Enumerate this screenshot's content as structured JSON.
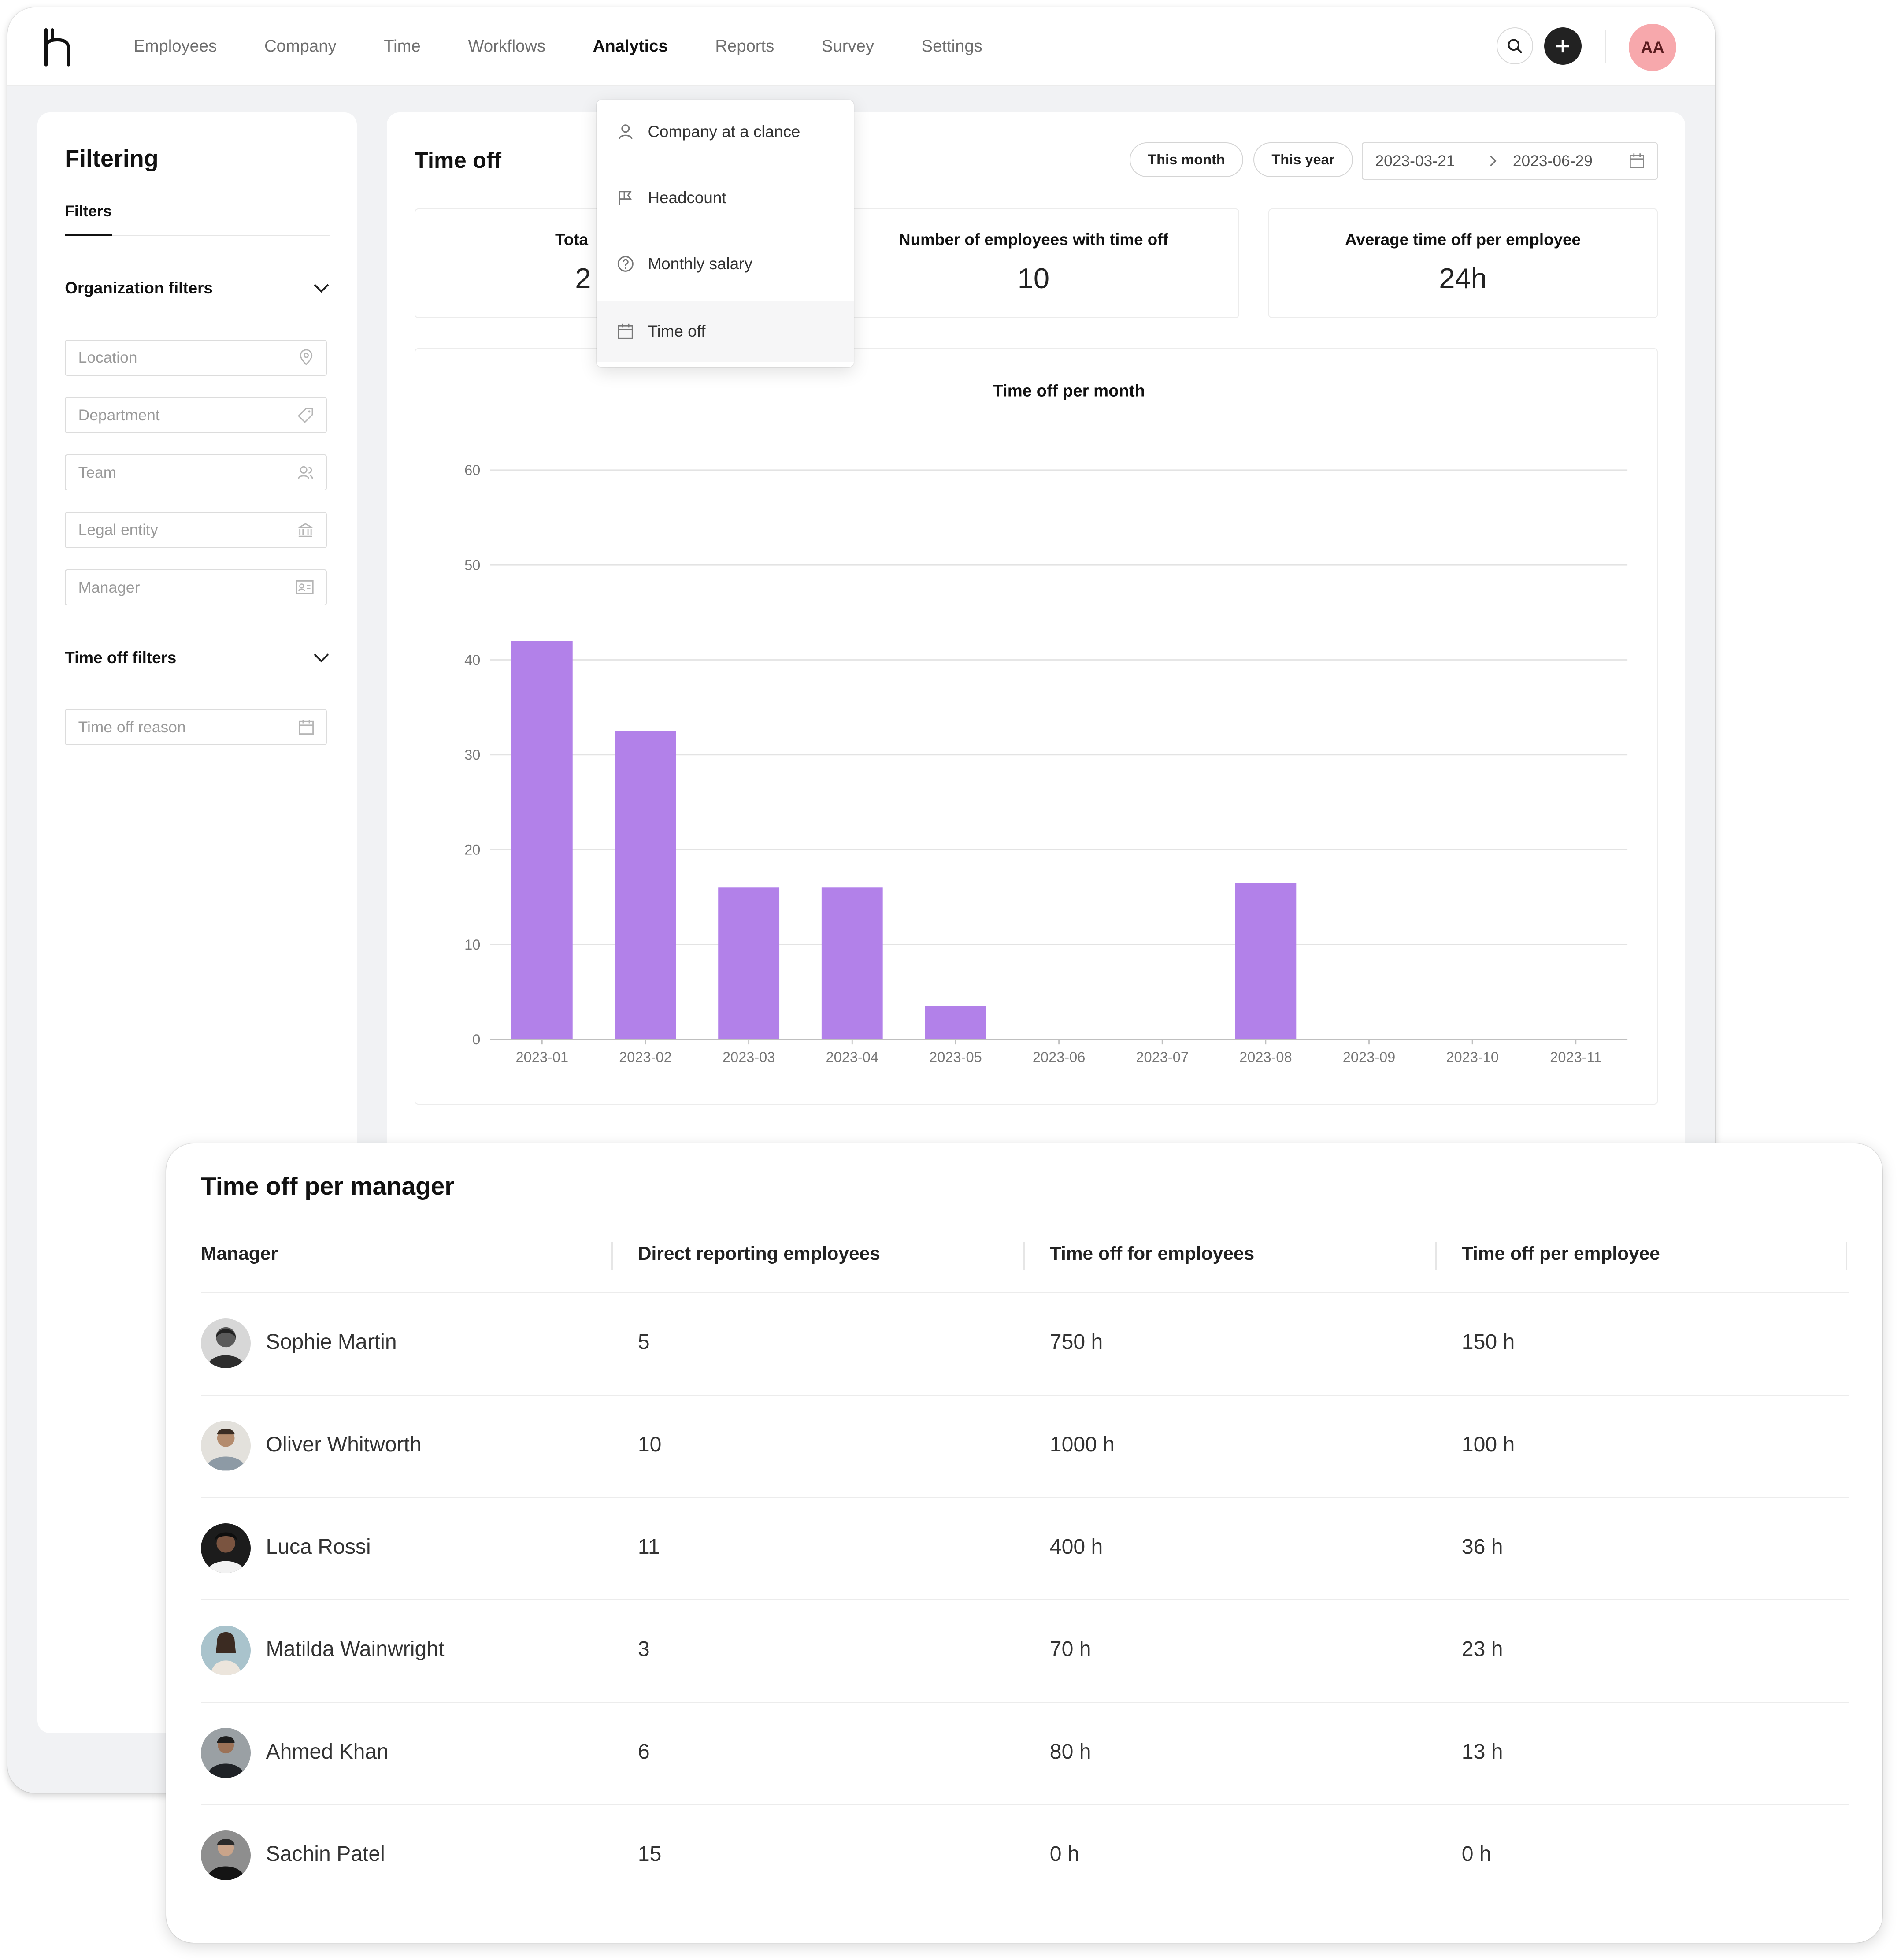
{
  "nav": {
    "items": [
      "Employees",
      "Company",
      "Time",
      "Workflows",
      "Analytics",
      "Reports",
      "Survey",
      "Settings"
    ],
    "active": "Analytics"
  },
  "topbar": {
    "avatar_initials": "AA",
    "avatar_color": "#f7a8ac"
  },
  "analytics_menu": {
    "items": [
      {
        "label": "Company at a clance",
        "icon": "user-icon"
      },
      {
        "label": "Headcount",
        "icon": "flag-icon"
      },
      {
        "label": "Monthly salary",
        "icon": "question-circle-icon"
      },
      {
        "label": "Time off",
        "icon": "calendar-icon",
        "active": true
      }
    ]
  },
  "filtering": {
    "title": "Filtering",
    "tab": "Filters",
    "org_section": "Organization filters",
    "fields": [
      {
        "placeholder": "Location",
        "icon": "map-pin-icon"
      },
      {
        "placeholder": "Department",
        "icon": "tag-icon"
      },
      {
        "placeholder": "Team",
        "icon": "team-icon"
      },
      {
        "placeholder": "Legal entity",
        "icon": "bank-icon"
      },
      {
        "placeholder": "Manager",
        "icon": "id-card-icon"
      }
    ],
    "timeoff_section": "Time off filters",
    "timeoff_fields": [
      {
        "placeholder": "Time off reason",
        "icon": "calendar-icon"
      }
    ]
  },
  "timeoff": {
    "title": "Time off",
    "this_month": "This month",
    "this_year": "This year",
    "date_from": "2023-03-21",
    "date_to": "2023-06-29",
    "stats": [
      {
        "label": "Tota",
        "value": "2"
      },
      {
        "label": "Number of employees with time off",
        "value": "10"
      },
      {
        "label": "Average time off per employee",
        "value": "24h"
      }
    ]
  },
  "chart_data": {
    "type": "bar",
    "title": "Time off per month",
    "categories": [
      "2023-01",
      "2023-02",
      "2023-03",
      "2023-04",
      "2023-05",
      "2023-06",
      "2023-07",
      "2023-08",
      "2023-09",
      "2023-10",
      "2023-11"
    ],
    "values": [
      42,
      32.5,
      16,
      16,
      3.5,
      0,
      0,
      16.5,
      0,
      0,
      0
    ],
    "yticks": [
      0,
      10,
      20,
      30,
      40,
      50,
      60
    ],
    "ylim": [
      0,
      60
    ],
    "color": "#b281e9",
    "grid": true
  },
  "managers": {
    "title": "Time off per manager",
    "columns": [
      "Manager",
      "Direct reporting employees",
      "Time off for employees",
      "Time off per employee"
    ],
    "rows": [
      {
        "name": "Sophie Martin",
        "direct": "5",
        "total": "750 h",
        "per": "150 h"
      },
      {
        "name": "Oliver Whitworth",
        "direct": "10",
        "total": "1000 h",
        "per": "100 h"
      },
      {
        "name": "Luca Rossi",
        "direct": "11",
        "total": "400 h",
        "per": "36 h"
      },
      {
        "name": "Matilda Wainwright",
        "direct": "3",
        "total": "70 h",
        "per": "23 h"
      },
      {
        "name": "Ahmed Khan",
        "direct": "6",
        "total": "80 h",
        "per": "13 h"
      },
      {
        "name": "Sachin Patel",
        "direct": "15",
        "total": "0 h",
        "per": "0 h"
      }
    ]
  }
}
